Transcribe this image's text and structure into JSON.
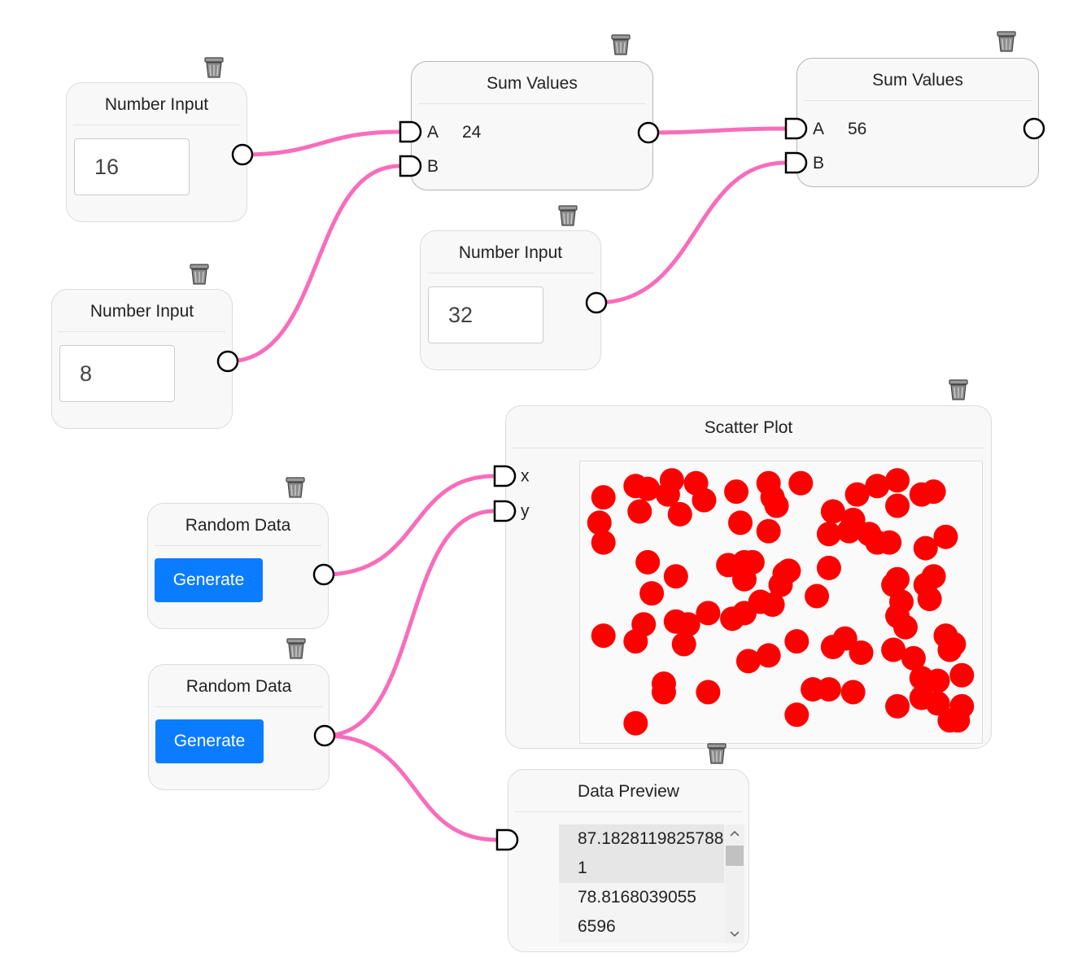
{
  "nodes": [
    {
      "title": "Number Input",
      "value": 16
    },
    {
      "title": "Number Input",
      "value": 8
    },
    {
      "title": "Sum Values",
      "inputs": [
        "A",
        "B"
      ],
      "value": 24
    },
    {
      "title": "Number Input",
      "value": 32
    },
    {
      "title": "Sum Values",
      "inputs": [
        "A",
        "B"
      ],
      "value": 56
    },
    {
      "title": "Random Data",
      "button": "Generate"
    },
    {
      "title": "Random Data",
      "button": "Generate"
    },
    {
      "title": "Scatter Plot",
      "inputs": [
        "x",
        "y"
      ]
    },
    {
      "title": "Data Preview",
      "items": [
        "87.18281198257881",
        "78.81680390556596"
      ]
    }
  ],
  "chart_data": {
    "type": "scatter",
    "color": "#ff0000",
    "xlim": [
      0,
      100
    ],
    "ylim": [
      0,
      100
    ],
    "x": [
      6,
      5,
      6,
      14,
      17,
      15,
      22,
      23,
      29,
      31,
      25,
      39,
      47,
      48,
      49,
      55,
      40,
      47,
      63,
      69,
      74,
      79,
      79,
      85,
      88,
      62,
      67,
      68,
      72,
      74,
      77,
      86,
      91,
      17,
      24,
      18,
      37,
      41,
      43,
      41,
      51,
      52,
      62,
      50,
      59,
      78,
      79,
      86,
      88,
      87,
      80,
      79,
      81,
      6,
      16,
      14,
      24,
      27,
      26,
      32,
      38,
      41,
      45,
      48,
      63,
      66,
      70,
      54,
      42,
      47,
      78,
      83,
      91,
      93,
      92,
      21,
      21,
      32,
      58,
      62,
      68,
      85,
      89,
      95,
      85,
      89,
      95,
      79,
      92,
      94,
      14,
      54
    ],
    "y": [
      87,
      78,
      71,
      91,
      90,
      82,
      88,
      93,
      92,
      86,
      81,
      89,
      92,
      87,
      84,
      92,
      78,
      75,
      82,
      88,
      91,
      93,
      84,
      88,
      89,
      74,
      75,
      79,
      74,
      71,
      71,
      69,
      73,
      64,
      59,
      53,
      63,
      64,
      64,
      58,
      60,
      61,
      62,
      56,
      52,
      56,
      58,
      56,
      59,
      51,
      50,
      45,
      41,
      38,
      42,
      36,
      43,
      42,
      35,
      46,
      44,
      46,
      50,
      49,
      34,
      37,
      32,
      36,
      29,
      31,
      33,
      30,
      38,
      35,
      33,
      21,
      18,
      18,
      19,
      19,
      18,
      23,
      22,
      24,
      16,
      14,
      13,
      13,
      8,
      8,
      7,
      10
    ]
  }
}
